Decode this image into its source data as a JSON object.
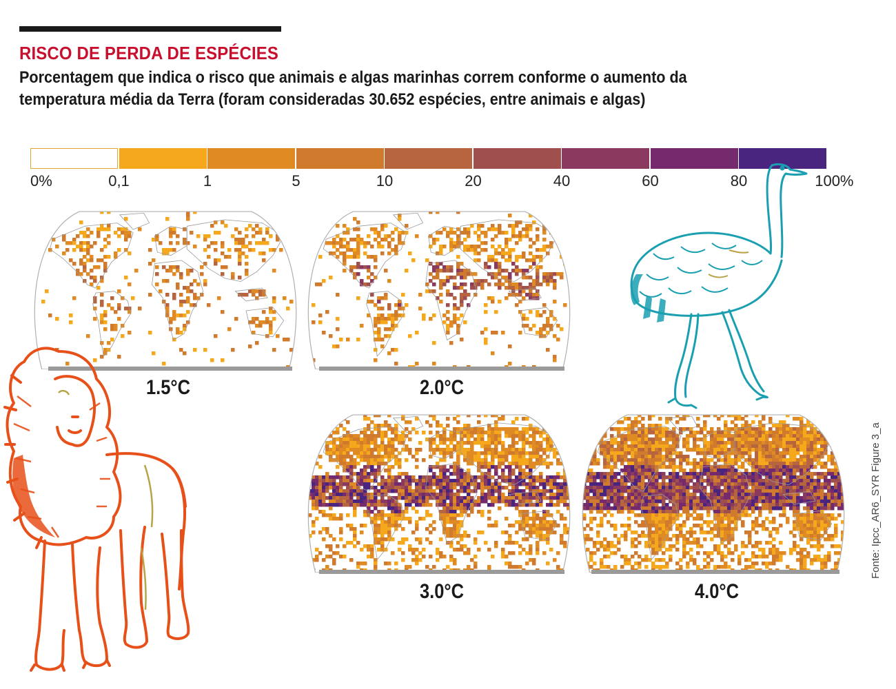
{
  "header": {
    "kicker": "RISCO DE PERDA DE ESPÉCIES",
    "subtitle": "Porcentagem que indica o risco que animais e algas marinhas correm conforme o aumento da temperatura média da Terra (foram consideradas 30.652 espécies, entre animais e algas)"
  },
  "legend": {
    "ticks": [
      "0%",
      "0,1",
      "1",
      "5",
      "10",
      "20",
      "40",
      "60",
      "80",
      "100%"
    ],
    "colors": [
      "#ffffff",
      "#f6a81c",
      "#e08a24",
      "#cf7a2c",
      "#b6653f",
      "#a04f4f",
      "#8a3a5e",
      "#752a6d",
      "#4a2580"
    ]
  },
  "maps": [
    {
      "label": "1.5°C",
      "warming_c": 1.5
    },
    {
      "label": "2.0°C",
      "warming_c": 2.0
    },
    {
      "label": "3.0°C",
      "warming_c": 3.0
    },
    {
      "label": "4.0°C",
      "warming_c": 4.0
    }
  ],
  "source": "Fonte: Ipcc_AR6_SYR Figure 3_a",
  "illustrations": {
    "left": "lion-icon",
    "right": "rhea-icon"
  }
}
